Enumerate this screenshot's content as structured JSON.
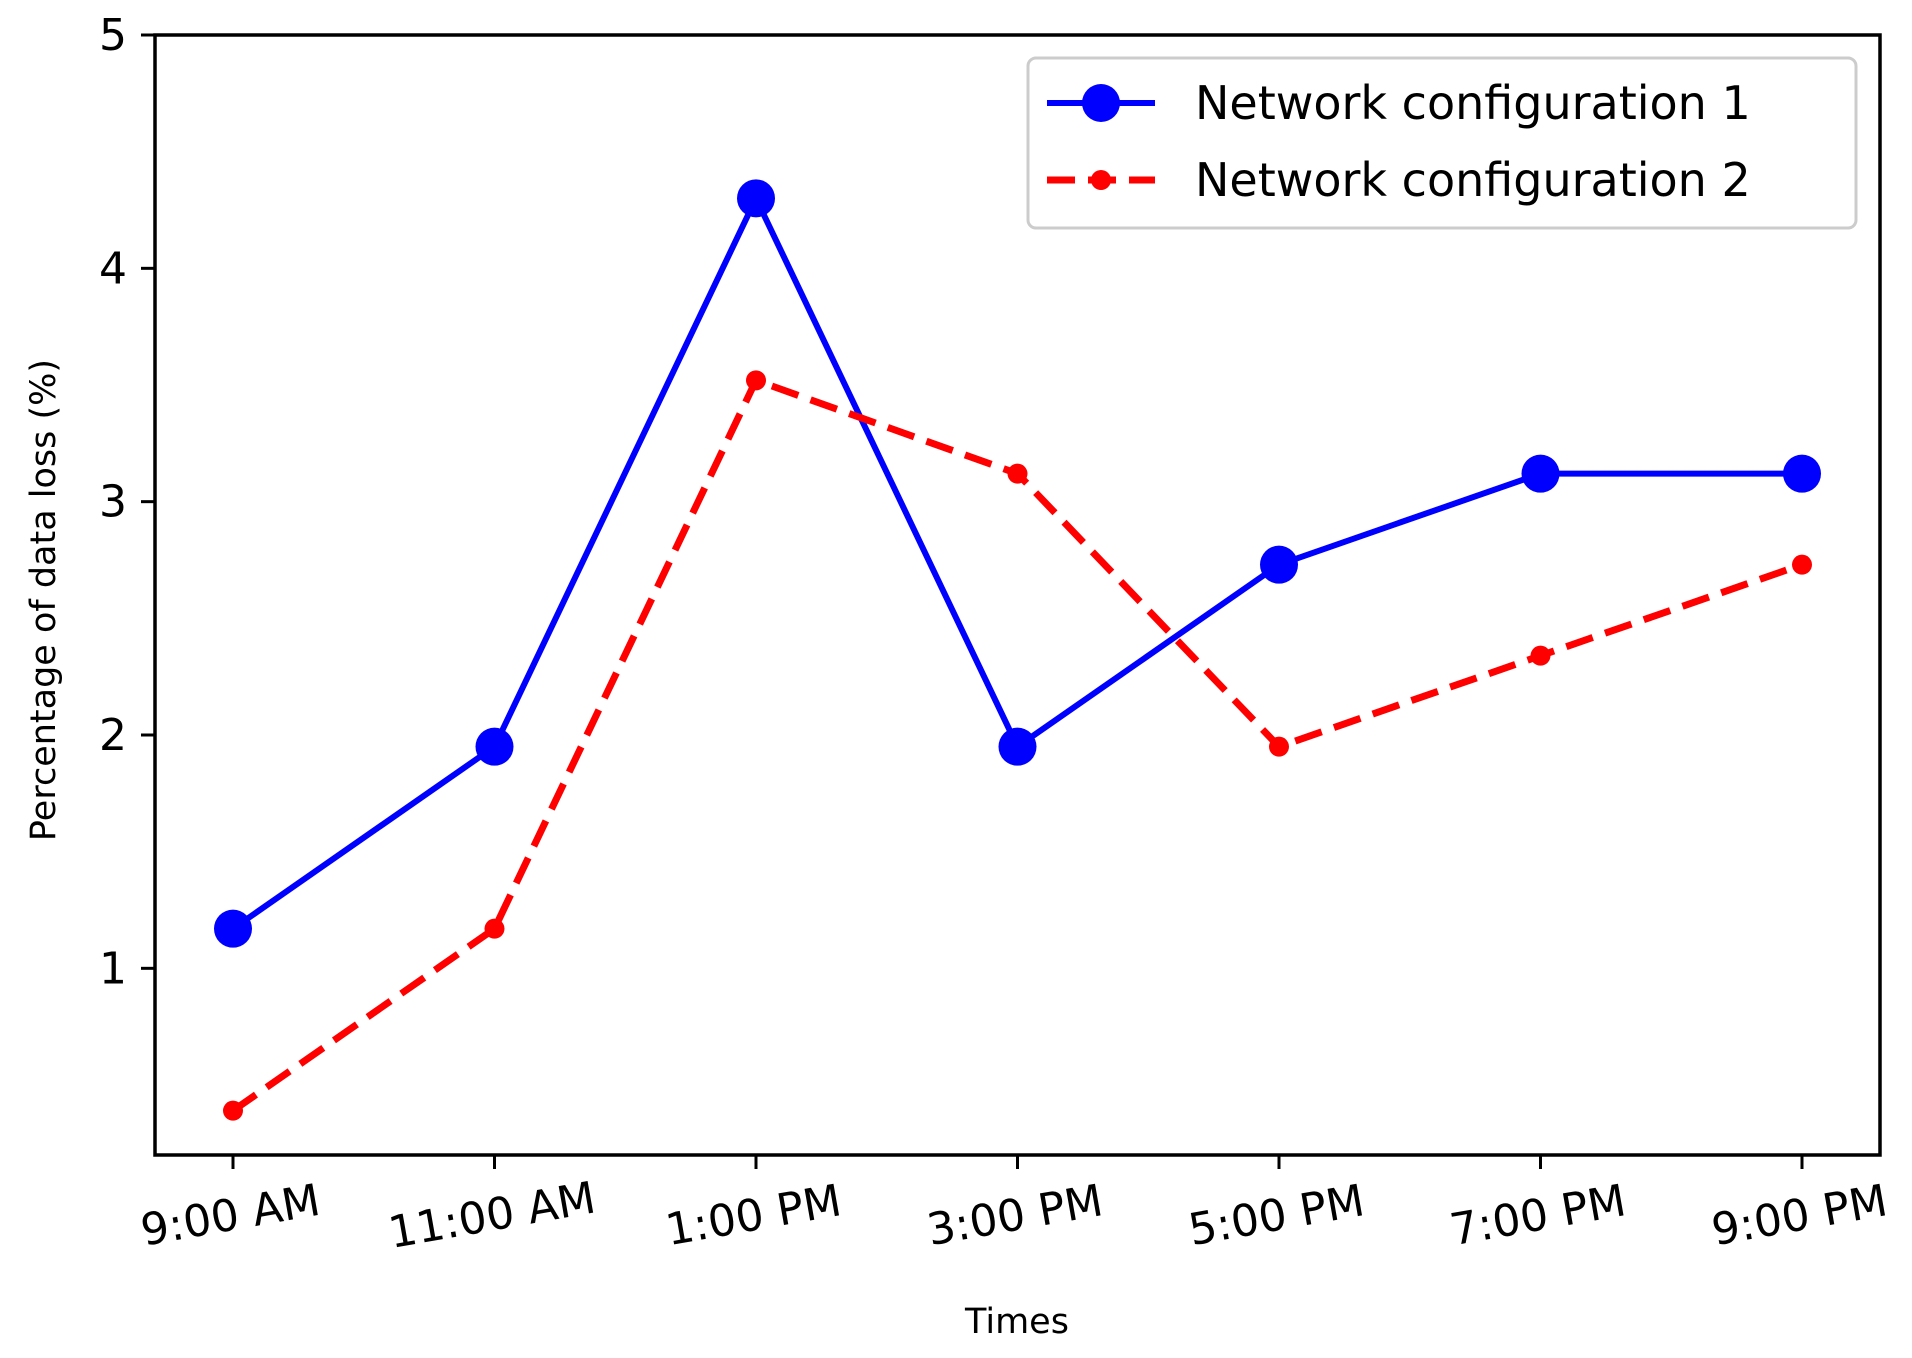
{
  "chart_data": {
    "type": "line",
    "title": "",
    "xlabel": "Times",
    "ylabel": "Percentage of data loss (%)",
    "categories": [
      "9:00 AM",
      "11:00 AM",
      "1:00 PM",
      "3:00 PM",
      "5:00 PM",
      "7:00 PM",
      "9:00 PM"
    ],
    "ylim": [
      0.2,
      5
    ],
    "yticks": [
      1,
      2,
      3,
      4,
      5
    ],
    "grid": false,
    "legend": "upper right",
    "series": [
      {
        "name": "Network  configuration 1",
        "values": [
          1.17,
          1.95,
          4.3,
          1.95,
          2.73,
          3.12,
          3.12
        ],
        "color": "#0000ff",
        "line_style": "solid",
        "marker": "large-circle"
      },
      {
        "name": "Network configuration 2",
        "values": [
          0.39,
          1.17,
          3.52,
          3.12,
          1.95,
          2.34,
          2.73
        ],
        "color": "#ff0000",
        "line_style": "dashed",
        "marker": "small-circle"
      }
    ]
  }
}
